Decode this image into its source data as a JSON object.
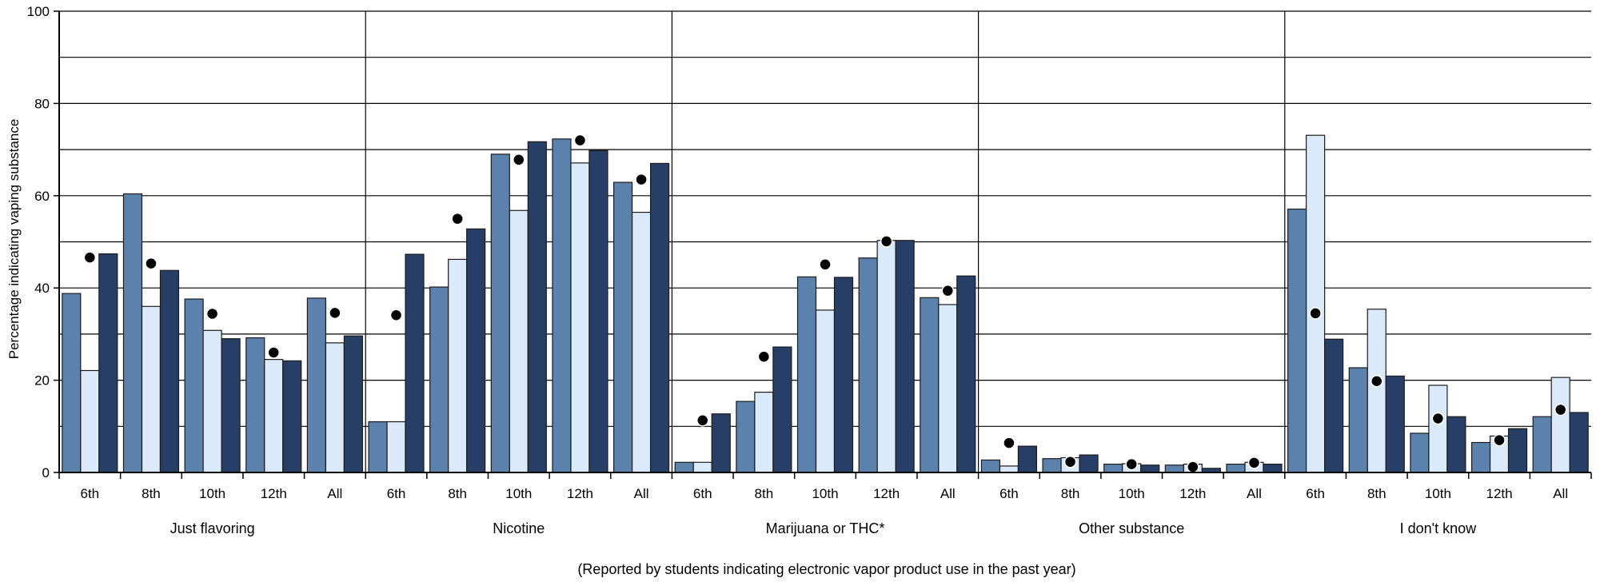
{
  "chart_data": {
    "type": "bar",
    "ylabel": "Percentage indicating vaping substance",
    "footnote": "(Reported by students indicating electronic vapor product use in the past year)",
    "ylim": [
      0,
      100
    ],
    "yticks": [
      0,
      20,
      40,
      60,
      80,
      100
    ],
    "grid": true,
    "grade_labels": [
      "6th",
      "8th",
      "10th",
      "12th",
      "All"
    ],
    "colors": [
      "#5b82ad",
      "#daeafa",
      "#273f66"
    ],
    "dot_color": "#000000",
    "groups": [
      {
        "label": "Just flavoring",
        "bars": [
          [
            38.8,
            22.1,
            47.4
          ],
          [
            60.4,
            36.0,
            43.8
          ],
          [
            37.6,
            30.8,
            29.0
          ],
          [
            29.2,
            24.5,
            24.2
          ],
          [
            37.8,
            28.1,
            29.6
          ]
        ],
        "dots": [
          46.6,
          45.3,
          34.4,
          26.0,
          34.6
        ]
      },
      {
        "label": "Nicotine",
        "bars": [
          [
            11.0,
            11.0,
            47.3
          ],
          [
            40.2,
            46.2,
            52.8
          ],
          [
            69.0,
            56.8,
            71.7
          ],
          [
            72.3,
            67.1,
            69.8
          ],
          [
            62.9,
            56.4,
            67.0
          ]
        ],
        "dots": [
          34.1,
          55.0,
          67.8,
          72.0,
          63.5
        ]
      },
      {
        "label": "Marijuana or THC*",
        "bars": [
          [
            2.2,
            2.2,
            12.7
          ],
          [
            15.4,
            17.4,
            27.2
          ],
          [
            42.4,
            35.2,
            42.3
          ],
          [
            46.5,
            50.3,
            50.3
          ],
          [
            37.9,
            36.4,
            42.6
          ]
        ],
        "dots": [
          11.3,
          25.1,
          45.1,
          50.1,
          39.4
        ]
      },
      {
        "label": "Other substance",
        "bars": [
          [
            2.7,
            1.4,
            5.7
          ],
          [
            3.0,
            3.2,
            3.8
          ],
          [
            1.8,
            1.9,
            1.6
          ],
          [
            1.6,
            1.8,
            0.9
          ],
          [
            1.8,
            2.2,
            1.8
          ]
        ],
        "dots": [
          6.4,
          2.3,
          1.8,
          1.2,
          2.1
        ]
      },
      {
        "label": "I don't know",
        "bars": [
          [
            57.1,
            73.1,
            28.9
          ],
          [
            22.7,
            35.4,
            20.9
          ],
          [
            8.5,
            18.9,
            12.1
          ],
          [
            6.5,
            7.9,
            9.5
          ],
          [
            12.1,
            20.6,
            13.0
          ]
        ],
        "dots": [
          34.5,
          19.8,
          11.7,
          7.0,
          13.6
        ]
      }
    ]
  }
}
